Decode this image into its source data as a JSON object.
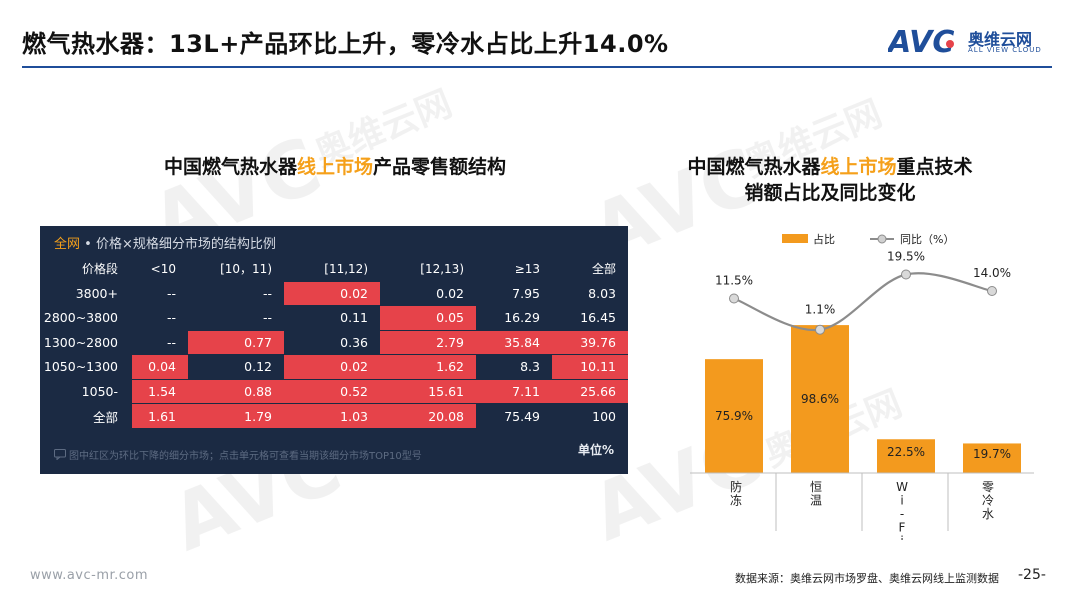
{
  "header": {
    "title": "燃气热水器：13L+产品环比上升，零冷水占比上升14.0%",
    "logo_mark": "AVC",
    "logo_cn": "奥维云网",
    "logo_en": "ALL VIEW CLOUD"
  },
  "watermark": {
    "mark": "AVC",
    "cn": "奥维云网",
    "en": "ALL VIEW CLOUD"
  },
  "left_section": {
    "title_pre": "中国燃气热水器",
    "title_highlight": "线上市场",
    "title_post": "产品零售额结构",
    "table": {
      "head_accent": "全网",
      "head_text": " • 价格×规格细分市场的结构比例",
      "columns": [
        "价格段",
        "<10",
        "[10，11)",
        "[11,12)",
        "[12,13)",
        "≥13",
        "全部"
      ],
      "rows": [
        {
          "label": "3800+",
          "cells": [
            "--",
            "--",
            "0.02",
            "0.02",
            "7.95",
            "8.03"
          ],
          "red": [
            false,
            false,
            true,
            false,
            false,
            false
          ]
        },
        {
          "label": "2800~3800",
          "cells": [
            "--",
            "--",
            "0.11",
            "0.05",
            "16.29",
            "16.45"
          ],
          "red": [
            false,
            false,
            false,
            true,
            false,
            false
          ]
        },
        {
          "label": "1300~2800",
          "cells": [
            "--",
            "0.77",
            "0.36",
            "2.79",
            "35.84",
            "39.76"
          ],
          "red": [
            false,
            true,
            false,
            true,
            true,
            true
          ]
        },
        {
          "label": "1050~1300",
          "cells": [
            "0.04",
            "0.12",
            "0.02",
            "1.62",
            "8.3",
            "10.11"
          ],
          "red": [
            true,
            false,
            true,
            true,
            false,
            true
          ]
        },
        {
          "label": "1050-",
          "cells": [
            "1.54",
            "0.88",
            "0.52",
            "15.61",
            "7.11",
            "25.66"
          ],
          "red": [
            true,
            true,
            true,
            true,
            true,
            true
          ]
        },
        {
          "label": "全部",
          "cells": [
            "1.61",
            "1.79",
            "1.03",
            "20.08",
            "75.49",
            "100"
          ],
          "red": [
            true,
            true,
            true,
            true,
            false,
            false
          ]
        }
      ],
      "note": "图中红区为环比下降的细分市场；点击单元格可查看当期该细分市场TOP10型号",
      "unit": "单位%"
    }
  },
  "right_section": {
    "title_line1_pre": "中国燃气热水器",
    "title_line1_highlight": "线上市场",
    "title_line1_post": "重点技术",
    "title_line2": "销额占比及同比变化"
  },
  "chart_data": {
    "type": "bar",
    "categories": [
      "防冻",
      "恒温",
      "Wi-Fi控制",
      "零冷水"
    ],
    "series": [
      {
        "name": "占比",
        "type": "bar",
        "values": [
          75.9,
          98.6,
          22.5,
          19.7
        ],
        "labels": [
          "75.9%",
          "98.6%",
          "22.5%",
          "19.7%"
        ],
        "color": "#f39a1e"
      },
      {
        "name": "同比（%）",
        "type": "line",
        "values": [
          11.5,
          1.1,
          19.5,
          14.0
        ],
        "labels": [
          "11.5%",
          "1.1%",
          "19.5%",
          "14.0%"
        ],
        "color": "#8c8c8c"
      }
    ],
    "legend_position": "top",
    "grid": false
  },
  "footer": {
    "url": "www.avc-mr.com",
    "source": "数据来源：奥维云网市场罗盘、奥维云网线上监测数据",
    "page": "-25-"
  }
}
